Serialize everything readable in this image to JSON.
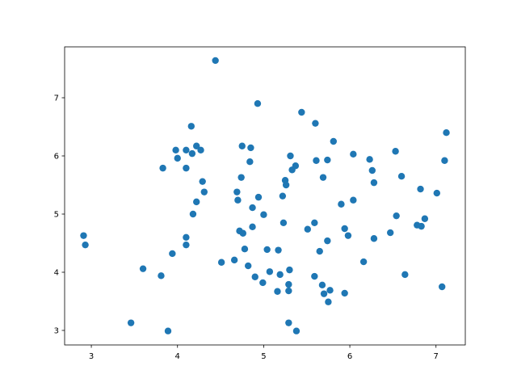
{
  "chart_data": {
    "type": "scatter",
    "title": "",
    "xlabel": "",
    "ylabel": "",
    "xlim": [
      2.69,
      7.34
    ],
    "ylim": [
      2.75,
      7.875
    ],
    "xticks": [
      3,
      4,
      5,
      6,
      7
    ],
    "yticks": [
      3,
      4,
      5,
      6,
      7
    ],
    "xtick_labels": [
      "3",
      "4",
      "5",
      "6",
      "7"
    ],
    "ytick_labels": [
      "3",
      "4",
      "5",
      "6",
      "7"
    ],
    "grid": false,
    "marker_color": "#1f77b4",
    "points": [
      [
        2.91,
        4.63
      ],
      [
        2.93,
        4.47
      ],
      [
        3.46,
        3.13
      ],
      [
        3.6,
        4.06
      ],
      [
        3.81,
        3.94
      ],
      [
        3.89,
        2.99
      ],
      [
        3.83,
        5.79
      ],
      [
        3.94,
        4.32
      ],
      [
        3.98,
        6.1
      ],
      [
        4.0,
        5.96
      ],
      [
        4.1,
        6.1
      ],
      [
        4.1,
        5.79
      ],
      [
        4.1,
        4.6
      ],
      [
        4.1,
        4.47
      ],
      [
        4.16,
        6.51
      ],
      [
        4.17,
        6.04
      ],
      [
        4.18,
        5.0
      ],
      [
        4.22,
        6.17
      ],
      [
        4.22,
        5.21
      ],
      [
        4.27,
        6.1
      ],
      [
        4.29,
        5.56
      ],
      [
        4.31,
        5.38
      ],
      [
        4.44,
        7.64
      ],
      [
        4.51,
        4.17
      ],
      [
        4.66,
        4.21
      ],
      [
        4.69,
        5.38
      ],
      [
        4.7,
        5.24
      ],
      [
        4.72,
        4.71
      ],
      [
        4.75,
        6.17
      ],
      [
        4.74,
        5.63
      ],
      [
        4.76,
        4.67
      ],
      [
        4.78,
        4.4
      ],
      [
        4.82,
        4.11
      ],
      [
        4.84,
        5.9
      ],
      [
        4.85,
        6.14
      ],
      [
        4.87,
        5.11
      ],
      [
        4.87,
        4.78
      ],
      [
        4.9,
        3.92
      ],
      [
        4.93,
        6.9
      ],
      [
        4.94,
        5.29
      ],
      [
        4.99,
        3.82
      ],
      [
        5.0,
        4.99
      ],
      [
        5.04,
        4.39
      ],
      [
        5.07,
        4.01
      ],
      [
        5.16,
        3.67
      ],
      [
        5.17,
        4.38
      ],
      [
        5.19,
        3.96
      ],
      [
        5.22,
        5.31
      ],
      [
        5.23,
        4.85
      ],
      [
        5.25,
        5.58
      ],
      [
        5.26,
        5.5
      ],
      [
        5.29,
        3.13
      ],
      [
        5.29,
        3.68
      ],
      [
        5.29,
        3.79
      ],
      [
        5.3,
        4.04
      ],
      [
        5.31,
        6.0
      ],
      [
        5.33,
        5.76
      ],
      [
        5.37,
        5.83
      ],
      [
        5.38,
        2.99
      ],
      [
        5.44,
        6.75
      ],
      [
        5.51,
        4.74
      ],
      [
        5.59,
        3.93
      ],
      [
        5.59,
        4.85
      ],
      [
        5.6,
        6.56
      ],
      [
        5.61,
        5.92
      ],
      [
        5.65,
        4.36
      ],
      [
        5.68,
        3.78
      ],
      [
        5.69,
        5.63
      ],
      [
        5.7,
        3.63
      ],
      [
        5.74,
        5.93
      ],
      [
        5.74,
        4.54
      ],
      [
        5.75,
        3.49
      ],
      [
        5.77,
        3.69
      ],
      [
        5.81,
        6.25
      ],
      [
        5.9,
        5.17
      ],
      [
        5.94,
        4.75
      ],
      [
        5.94,
        3.64
      ],
      [
        5.98,
        4.63
      ],
      [
        6.04,
        6.03
      ],
      [
        6.04,
        5.24
      ],
      [
        6.16,
        4.18
      ],
      [
        6.23,
        5.94
      ],
      [
        6.26,
        5.75
      ],
      [
        6.28,
        5.54
      ],
      [
        6.28,
        4.58
      ],
      [
        6.47,
        4.68
      ],
      [
        6.53,
        6.08
      ],
      [
        6.54,
        4.97
      ],
      [
        6.6,
        5.65
      ],
      [
        6.64,
        3.96
      ],
      [
        6.78,
        4.81
      ],
      [
        6.82,
        5.43
      ],
      [
        6.83,
        4.79
      ],
      [
        6.87,
        4.92
      ],
      [
        7.01,
        5.36
      ],
      [
        7.07,
        3.75
      ],
      [
        7.1,
        5.92
      ],
      [
        7.12,
        6.4
      ]
    ]
  }
}
